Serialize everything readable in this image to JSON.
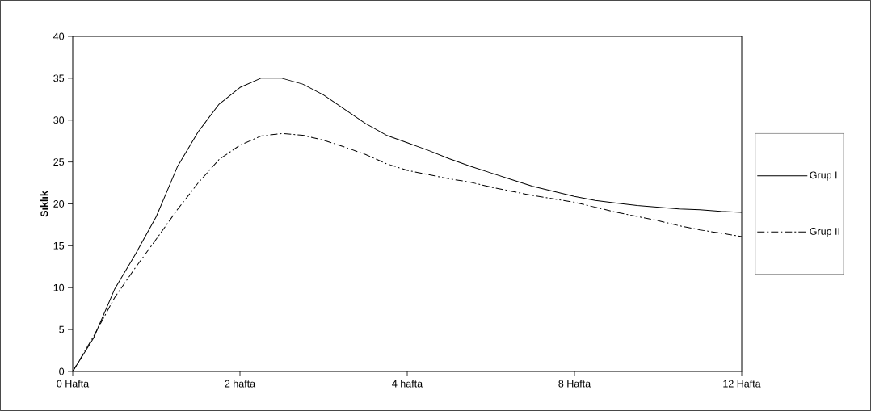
{
  "chart_data": {
    "type": "line",
    "ylabel": "Sıklık",
    "ylim": [
      0,
      40
    ],
    "categories": [
      "0 Hafta",
      null,
      null,
      null,
      null,
      null,
      null,
      null,
      "2 hafta",
      null,
      null,
      null,
      null,
      null,
      null,
      null,
      "4 hafta",
      null,
      null,
      null,
      null,
      null,
      null,
      null,
      "8 Hafta",
      null,
      null,
      null,
      null,
      null,
      null,
      null,
      "12 Hafta"
    ],
    "yticks": [
      0,
      5,
      10,
      15,
      20,
      25,
      30,
      35,
      40
    ],
    "legend": "right",
    "marker": "none",
    "grid": false,
    "series": [
      {
        "name": "Grup I",
        "color": "#000000",
        "line_style": "solid",
        "values": [
          0,
          4.0,
          9.8,
          14.0,
          18.5,
          24.4,
          28.6,
          31.9,
          33.9,
          35.0,
          35.0,
          34.3,
          33.0,
          31.3,
          29.6,
          28.2,
          27.3,
          26.4,
          25.4,
          24.5,
          23.7,
          22.9,
          22.1,
          21.5,
          20.9,
          20.4,
          20.1,
          19.8,
          19.6,
          19.4,
          19.3,
          19.1,
          19.0
        ]
      },
      {
        "name": "Grup II",
        "color": "#000000",
        "line_style": "dashdotted",
        "values": [
          0,
          4.2,
          8.8,
          12.4,
          15.8,
          19.3,
          22.5,
          25.3,
          27.0,
          28.1,
          28.4,
          28.2,
          27.6,
          26.8,
          25.9,
          24.8,
          24.0,
          23.5,
          23.0,
          22.6,
          22.0,
          21.5,
          21.0,
          20.6,
          20.2,
          19.6,
          19.0,
          18.5,
          18.0,
          17.4,
          16.9,
          16.5,
          16.1
        ]
      }
    ]
  }
}
